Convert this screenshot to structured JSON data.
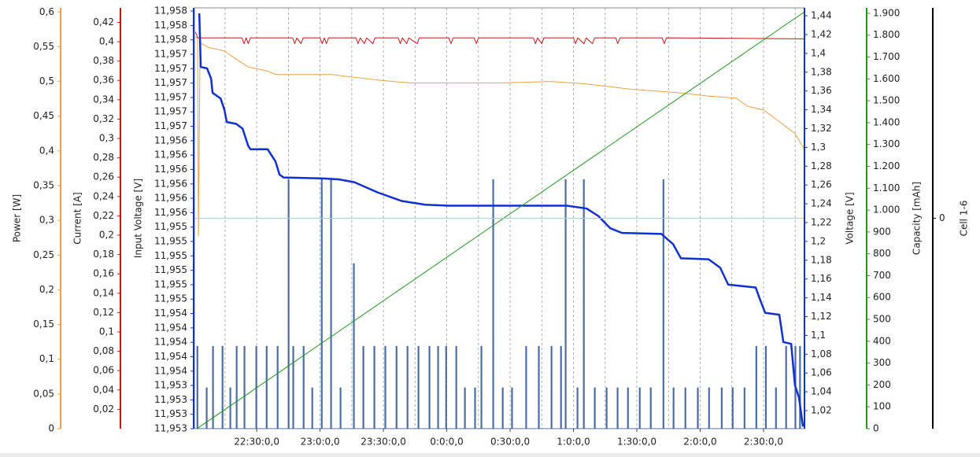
{
  "chart_data": {
    "type": "line",
    "xlim": [
      0.5,
      289.4
    ],
    "xticks": [
      {
        "value": 30,
        "label": "22:30:0,0"
      },
      {
        "value": 60,
        "label": "23:0:0,0"
      },
      {
        "value": 90,
        "label": "23:30:0,0"
      },
      {
        "value": 120,
        "label": "0:0:0,0"
      },
      {
        "value": 150,
        "label": "0:30:0,0"
      },
      {
        "value": 180,
        "label": "1:0:0,0"
      },
      {
        "value": 210,
        "label": "1:30:0,0"
      },
      {
        "value": 240,
        "label": "2:0:0,0"
      },
      {
        "value": 270,
        "label": "2:30:0,0"
      }
    ],
    "xminorticks": [
      15,
      45,
      75,
      105,
      135,
      165,
      195,
      225,
      255,
      285
    ],
    "grid": true,
    "yaxes": [
      {
        "label": "Power [W]",
        "color": "#f0a040",
        "ylim": [
          0,
          0.606
        ],
        "yticks": [
          0,
          {
            "value": 0.05,
            "label": "0,05"
          },
          {
            "value": 0.1,
            "label": "0,1"
          },
          {
            "value": 0.15,
            "label": "0,15"
          },
          {
            "value": 0.2,
            "label": "0,2"
          },
          {
            "value": 0.25,
            "label": "0,25"
          },
          {
            "value": 0.3,
            "label": "0,3"
          },
          {
            "value": 0.35,
            "label": "0,35"
          },
          {
            "value": 0.4,
            "label": "0,4"
          },
          {
            "value": 0.45,
            "label": "0,45"
          },
          {
            "value": 0.5,
            "label": "0,5"
          },
          {
            "value": 0.55,
            "label": "0,55"
          },
          {
            "value": 0.6,
            "label": "0,6"
          }
        ]
      },
      {
        "label": "Current [A]",
        "color": "#d01010",
        "ylim": [
          0,
          0.435
        ],
        "yticks": [
          {
            "value": 0.02,
            "label": "0,02"
          },
          {
            "value": 0.04,
            "label": "0,04"
          },
          {
            "value": 0.06,
            "label": "0,06"
          },
          {
            "value": 0.08,
            "label": "0,08"
          },
          {
            "value": 0.1,
            "label": "0,1"
          },
          {
            "value": 0.12,
            "label": "0,12"
          },
          {
            "value": 0.14,
            "label": "0,14"
          },
          {
            "value": 0.16,
            "label": "0,16"
          },
          {
            "value": 0.18,
            "label": "0,18"
          },
          {
            "value": 0.2,
            "label": "0,2"
          },
          {
            "value": 0.22,
            "label": "0,22"
          },
          {
            "value": 0.24,
            "label": "0,24"
          },
          {
            "value": 0.26,
            "label": "0,26"
          },
          {
            "value": 0.28,
            "label": "0,28"
          },
          {
            "value": 0.3,
            "label": "0,3"
          },
          {
            "value": 0.32,
            "label": "0,32"
          },
          {
            "value": 0.34,
            "label": "0,34"
          },
          {
            "value": 0.36,
            "label": "0,36"
          },
          {
            "value": 0.38,
            "label": "0,38"
          },
          {
            "value": 0.4,
            "label": "0,4"
          },
          {
            "value": 0.42,
            "label": "0,42"
          }
        ]
      },
      {
        "label": "Input Voltage [V]",
        "color": "#1030d0",
        "ylim": [
          11.95297,
          11.958008
        ],
        "yticks": [
          {
            "value": 11.95297,
            "label": "11,953"
          },
          {
            "value": 11.9531424,
            "label": "11,953"
          },
          {
            "value": 11.9533148,
            "label": "11,953"
          },
          {
            "value": 11.9534872,
            "label": "11,953"
          },
          {
            "value": 11.9536596,
            "label": "11,954"
          },
          {
            "value": 11.953832,
            "label": "11,954"
          },
          {
            "value": 11.9540044,
            "label": "11,954"
          },
          {
            "value": 11.9541768,
            "label": "11,954"
          },
          {
            "value": 11.9543492,
            "label": "11,954"
          },
          {
            "value": 11.9545216,
            "label": "11,955"
          },
          {
            "value": 11.954694,
            "label": "11,955"
          },
          {
            "value": 11.9548664,
            "label": "11,955"
          },
          {
            "value": 11.9550388,
            "label": "11,955"
          },
          {
            "value": 11.9552112,
            "label": "11,955"
          },
          {
            "value": 11.9553836,
            "label": "11,955"
          },
          {
            "value": 11.955556,
            "label": "11,956"
          },
          {
            "value": 11.9557284,
            "label": "11,956"
          },
          {
            "value": 11.9559008,
            "label": "11,956"
          },
          {
            "value": 11.9560732,
            "label": "11,956"
          },
          {
            "value": 11.9562456,
            "label": "11,956"
          },
          {
            "value": 11.956418,
            "label": "11,956"
          },
          {
            "value": 11.9565904,
            "label": "11,957"
          },
          {
            "value": 11.9567628,
            "label": "11,957"
          },
          {
            "value": 11.9569352,
            "label": "11,957"
          },
          {
            "value": 11.9571076,
            "label": "11,957"
          },
          {
            "value": 11.95728,
            "label": "11,957"
          },
          {
            "value": 11.9574524,
            "label": "11,957"
          },
          {
            "value": 11.9576248,
            "label": "11,958"
          },
          {
            "value": 11.9577972,
            "label": "11,958"
          },
          {
            "value": 11.9579696,
            "label": "11,958"
          }
        ]
      },
      {
        "label": "Voltage [V]",
        "color": "#1030d0",
        "ylim": [
          1.0008,
          1.4484
        ],
        "yticks": [
          {
            "value": 1.02,
            "label": "1,02"
          },
          {
            "value": 1.04,
            "label": "1,04"
          },
          {
            "value": 1.06,
            "label": "1,06"
          },
          {
            "value": 1.08,
            "label": "1,08"
          },
          {
            "value": 1.1,
            "label": "1,1"
          },
          {
            "value": 1.12,
            "label": "1,12"
          },
          {
            "value": 1.14,
            "label": "1,14"
          },
          {
            "value": 1.16,
            "label": "1,16"
          },
          {
            "value": 1.18,
            "label": "1,18"
          },
          {
            "value": 1.2,
            "label": "1,2"
          },
          {
            "value": 1.22,
            "label": "1,22"
          },
          {
            "value": 1.24,
            "label": "1,24"
          },
          {
            "value": 1.26,
            "label": "1,26"
          },
          {
            "value": 1.28,
            "label": "1,28"
          },
          {
            "value": 1.3,
            "label": "1,3"
          },
          {
            "value": 1.32,
            "label": "1,32"
          },
          {
            "value": 1.34,
            "label": "1,34"
          },
          {
            "value": 1.36,
            "label": "1,36"
          },
          {
            "value": 1.38,
            "label": "1,38"
          },
          {
            "value": 1.4,
            "label": "1,4"
          },
          {
            "value": 1.42,
            "label": "1,42"
          },
          {
            "value": 1.44,
            "label": "1,44"
          }
        ]
      },
      {
        "label": "Capacity [mAh]",
        "color": "#1a9a1a",
        "ylim": [
          0,
          1925
        ],
        "yticks": [
          0,
          100,
          200,
          300,
          400,
          500,
          600,
          700,
          800,
          900,
          {
            "value": 1000,
            "label": "1.000"
          },
          {
            "value": 1100,
            "label": "1.100"
          },
          {
            "value": 1200,
            "label": "1.200"
          },
          {
            "value": 1300,
            "label": "1.300"
          },
          {
            "value": 1400,
            "label": "1.400"
          },
          {
            "value": 1500,
            "label": "1.500"
          },
          {
            "value": 1600,
            "label": "1.600"
          },
          {
            "value": 1700,
            "label": "1.700"
          },
          {
            "value": 1800,
            "label": "1.800"
          },
          {
            "value": 1900,
            "label": "1.900"
          }
        ]
      },
      {
        "label": "Cell 1-6",
        "color": "#000000",
        "ylim": [
          -1,
          1
        ],
        "yticks": [
          0
        ]
      }
    ],
    "series": [
      {
        "axis": 0,
        "color": "#f0a040",
        "x": [
          0.9,
          2.0,
          2.4,
          3.2,
          3.5,
          7.3,
          14.7,
          20.3,
          25.9,
          35.2,
          38.9,
          50.1,
          65.0,
          76.2,
          87.4,
          102.3,
          147.1,
          169.4,
          184.3,
          206.7,
          229.0,
          243.9,
          257.0,
          262.6,
          270.0,
          277.5,
          284.9,
          289.4
        ],
        "values": [
          0.563,
          0.563,
          0.277,
          0.561,
          0.555,
          0.549,
          0.544,
          0.532,
          0.521,
          0.515,
          0.51,
          0.51,
          0.51,
          0.506,
          0.502,
          0.498,
          0.498,
          0.5,
          0.497,
          0.489,
          0.484,
          0.479,
          0.476,
          0.464,
          0.459,
          0.442,
          0.425,
          0.402
        ]
      },
      {
        "axis": 1,
        "color": "#d01010",
        "x": [
          1,
          2,
          23,
          24,
          25,
          26,
          27,
          47,
          48,
          49,
          51,
          52,
          60,
          61,
          62,
          63,
          64,
          77,
          78,
          79,
          81,
          82,
          85,
          86,
          97,
          98,
          99,
          101,
          102,
          106,
          107,
          121,
          122,
          123,
          133,
          134,
          135,
          161,
          162,
          163,
          165,
          166,
          180,
          181,
          182,
          185,
          186,
          189,
          190,
          200,
          201,
          202,
          222,
          223,
          224,
          289
        ],
        "values": [
          0.41,
          0.404,
          0.404,
          0.398,
          0.404,
          0.398,
          0.404,
          0.404,
          0.398,
          0.404,
          0.398,
          0.404,
          0.404,
          0.398,
          0.404,
          0.398,
          0.404,
          0.404,
          0.398,
          0.404,
          0.398,
          0.404,
          0.398,
          0.404,
          0.404,
          0.398,
          0.404,
          0.398,
          0.404,
          0.398,
          0.404,
          0.404,
          0.398,
          0.404,
          0.404,
          0.398,
          0.404,
          0.404,
          0.398,
          0.404,
          0.398,
          0.404,
          0.404,
          0.398,
          0.404,
          0.398,
          0.404,
          0.398,
          0.404,
          0.404,
          0.398,
          0.404,
          0.404,
          0.398,
          0.404,
          0.403
        ]
      },
      {
        "axis": 2,
        "color": "#3a5fa0",
        "step": true,
        "x": [
          0.5,
          1.7,
          2.1,
          6.1,
          6.5,
          9.1,
          9.5,
          13.6,
          14.0,
          17.3,
          17.7,
          20.3,
          20.7,
          24.0,
          24.4,
          29.6,
          30.0,
          34.5,
          34.9,
          39.7,
          40.1,
          44.9,
          45.3,
          47.1,
          47.5,
          52.0,
          52.4,
          56.1,
          56.5,
          60.6,
          61.0,
          65.0,
          65.4,
          69.5,
          69.9,
          75.8,
          76.2,
          80.3,
          80.7,
          85.5,
          85.9,
          90.7,
          91.1,
          96.0,
          96.4,
          101.2,
          101.6,
          106.4,
          106.8,
          111.6,
          112.0,
          115.7,
          116.1,
          119.5,
          119.9,
          124.3,
          124.7,
          128.4,
          128.8,
          133.2,
          133.6,
          136.2,
          136.6,
          141.8,
          142.2,
          146.3,
          146.7,
          150.7,
          151.1,
          157.4,
          157.8,
          163.4,
          163.8,
          169.4,
          169.8,
          173.9,
          174.3,
          176.1,
          176.5,
          181.7,
          182.1,
          184.7,
          185.1,
          189.9,
          190.3,
          195.5,
          195.9,
          200.7,
          201.1,
          205.6,
          206.0,
          211.2,
          211.6,
          216.4,
          216.8,
          222.4,
          222.8,
          227.2,
          227.6,
          232.8,
          233.2,
          238.7,
          239.1,
          244.0,
          244.4,
          250.0,
          250.4,
          255.2,
          255.6,
          260.8,
          261.2,
          266.4,
          266.8,
          270.9,
          271.3,
          275.7,
          276.1,
          280.5,
          280.9,
          284.9,
          285.3,
          287.1,
          287.5
        ],
        "values": [
          11.95297,
          11.953957,
          11.95297,
          11.953459,
          11.95297,
          11.953957,
          11.95297,
          11.953957,
          11.95297,
          11.953459,
          11.95297,
          11.953957,
          11.95297,
          11.953957,
          11.95297,
          11.953957,
          11.95297,
          11.953957,
          11.95297,
          11.953957,
          11.95297,
          11.95595,
          11.95297,
          11.953957,
          11.95297,
          11.953957,
          11.95297,
          11.953459,
          11.95297,
          11.95595,
          11.95297,
          11.95595,
          11.95297,
          11.953459,
          11.95297,
          11.954944,
          11.95297,
          11.953957,
          11.95297,
          11.953957,
          11.95297,
          11.953957,
          11.95297,
          11.953957,
          11.95297,
          11.953957,
          11.95297,
          11.953957,
          11.95297,
          11.953957,
          11.95297,
          11.953957,
          11.95297,
          11.953957,
          11.95297,
          11.953957,
          11.95297,
          11.953459,
          11.95297,
          11.953459,
          11.95297,
          11.953957,
          11.95297,
          11.95595,
          11.95297,
          11.953459,
          11.95297,
          11.953459,
          11.95297,
          11.953957,
          11.95297,
          11.953957,
          11.95297,
          11.953957,
          11.95297,
          11.953957,
          11.95297,
          11.95595,
          11.95297,
          11.953459,
          11.95297,
          11.95595,
          11.95297,
          11.953459,
          11.95297,
          11.953459,
          11.95297,
          11.953459,
          11.95297,
          11.953459,
          11.95297,
          11.953459,
          11.95297,
          11.953459,
          11.95297,
          11.95595,
          11.95297,
          11.953459,
          11.95297,
          11.953459,
          11.95297,
          11.953459,
          11.95297,
          11.953459,
          11.95297,
          11.953459,
          11.95297,
          11.953459,
          11.95297,
          11.953459,
          11.95297,
          11.953957,
          11.95297,
          11.953957,
          11.95297,
          11.953459,
          11.95297,
          11.953957,
          11.95297,
          11.953957,
          11.95297,
          11.953957,
          11.95297
        ]
      },
      {
        "axis": 3,
        "color": "#1030d0",
        "width": 2.5,
        "x": [
          2.8,
          3.5,
          6.5,
          8.4,
          9.1,
          11.0,
          12.9,
          14.7,
          15.8,
          20.3,
          23.3,
          25.9,
          27.0,
          35.2,
          38.9,
          40.8,
          42.7,
          61.3,
          68.8,
          76.2,
          87.4,
          98.6,
          109.8,
          120.9,
          150.8,
          176.9,
          186.2,
          191.8,
          197.4,
          203.0,
          221.6,
          227.2,
          230.9,
          244.0,
          249.5,
          253.3,
          266.3,
          268.2,
          270.8,
          277.5,
          279.4,
          283.1,
          284.9,
          286.8,
          288.7
        ],
        "values": [
          1.4425,
          1.3856,
          1.384,
          1.373,
          1.358,
          1.355,
          1.352,
          1.34,
          1.327,
          1.325,
          1.32,
          1.302,
          1.298,
          1.298,
          1.285,
          1.271,
          1.268,
          1.267,
          1.266,
          1.263,
          1.252,
          1.243,
          1.239,
          1.238,
          1.238,
          1.238,
          1.235,
          1.227,
          1.214,
          1.209,
          1.208,
          1.197,
          1.182,
          1.181,
          1.172,
          1.154,
          1.151,
          1.139,
          1.124,
          1.122,
          1.093,
          1.091,
          1.047,
          1.034,
          1.003
        ]
      },
      {
        "axis": 4,
        "color": "#1a9a1a",
        "x": [
          1.7,
          289.4
        ],
        "values": [
          0,
          1907
        ]
      },
      {
        "axis": 5,
        "color": "#f0c080",
        "x": [
          0.5,
          289.4
        ],
        "values": [
          0,
          0
        ]
      }
    ]
  }
}
